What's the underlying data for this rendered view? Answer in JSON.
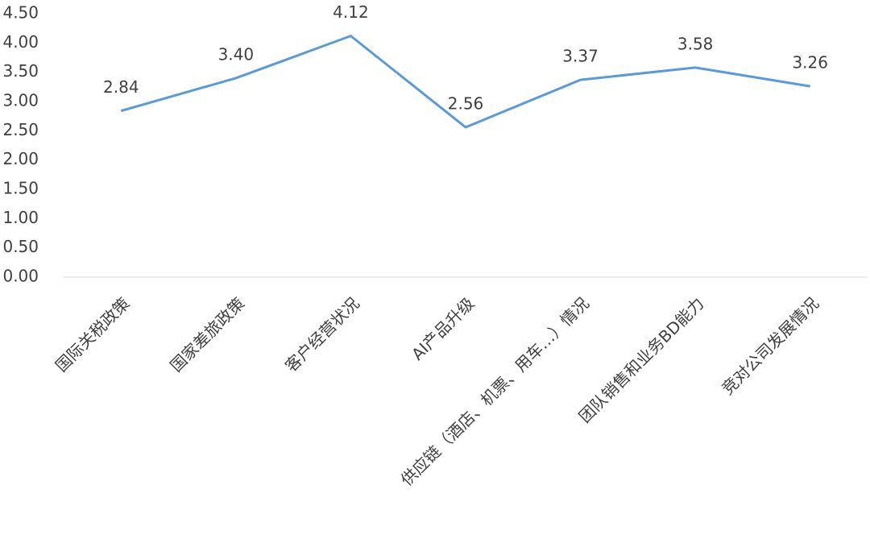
{
  "chart_data": {
    "type": "line",
    "categories": [
      "国际关税政策",
      "国家差旅政策",
      "客户经营状况",
      "AI产品升级",
      "供应链（酒店、机票、用车…）情况",
      "团队销售和业务BD能力",
      "竞对公司发展情况"
    ],
    "values": [
      2.84,
      3.4,
      4.12,
      2.56,
      3.37,
      3.58,
      3.26
    ],
    "value_labels": [
      "2.84",
      "3.40",
      "4.12",
      "2.56",
      "3.37",
      "3.58",
      "3.26"
    ],
    "color": "#5b9bd5",
    "ylim": [
      0,
      4.5
    ],
    "yticks": [
      {
        "value": 0,
        "label": "0.00"
      },
      {
        "value": 0.5,
        "label": "0.50"
      },
      {
        "value": 1,
        "label": "1.00"
      },
      {
        "value": 1.5,
        "label": "1.50"
      },
      {
        "value": 2,
        "label": "2.00"
      },
      {
        "value": 2.5,
        "label": "2.50"
      },
      {
        "value": 3,
        "label": "3.00"
      },
      {
        "value": 3.5,
        "label": "3.50"
      },
      {
        "value": 4,
        "label": "4.00"
      },
      {
        "value": 4.5,
        "label": "4.50"
      }
    ],
    "grid": false
  }
}
